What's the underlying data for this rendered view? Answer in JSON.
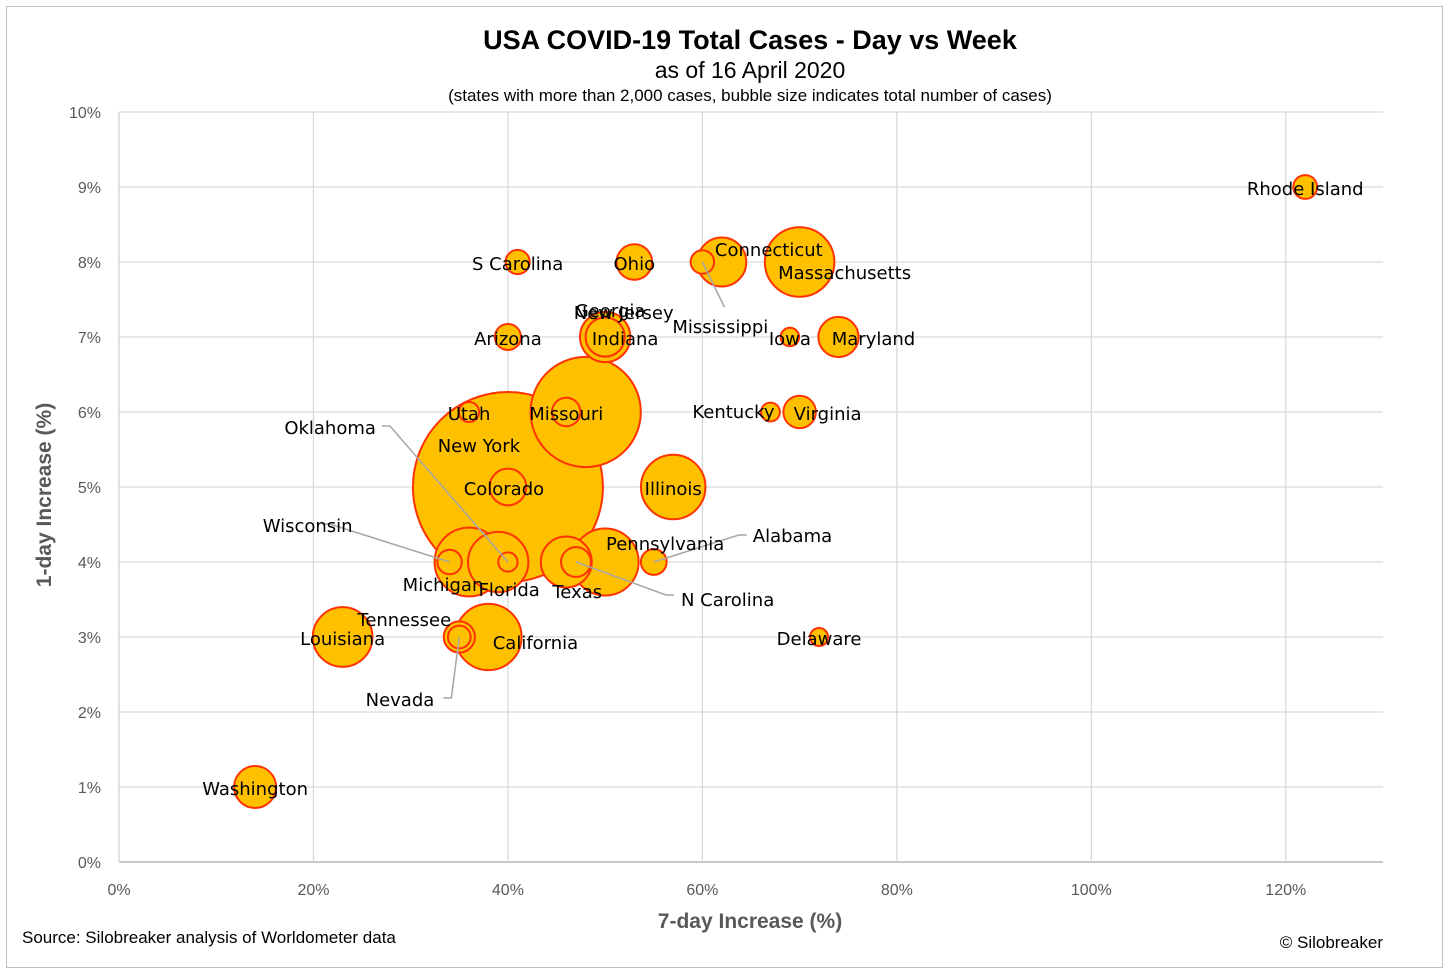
{
  "chart_data": {
    "type": "bubble",
    "title": "USA COVID-19 Total Cases - Day vs Week",
    "subtitle": "as of 16 April 2020",
    "note": "(states with more than 2,000 cases, bubble size indicates total number of cases)",
    "xlabel": "7-day Increase (%)",
    "ylabel": "1-day Increase (%)",
    "xlim": [
      0,
      130
    ],
    "ylim": [
      0,
      10
    ],
    "xticks": [
      0,
      20,
      40,
      60,
      80,
      100,
      120
    ],
    "yticks": [
      0,
      1,
      2,
      3,
      4,
      5,
      6,
      7,
      8,
      9,
      10
    ],
    "grid": true,
    "colors": {
      "fill": "#FFC000",
      "stroke": "#FF3300",
      "grid": "#d9d9d9",
      "leader": "#a6a6a6"
    },
    "points": [
      {
        "name": "New York",
        "x": 40,
        "y": 5,
        "size": 223000
      },
      {
        "name": "New Jersey",
        "x": 48,
        "y": 6,
        "size": 75000
      },
      {
        "name": "Massachusetts",
        "x": 70,
        "y": 8,
        "size": 29900
      },
      {
        "name": "Michigan",
        "x": 36,
        "y": 4,
        "size": 29300
      },
      {
        "name": "Pennsylvania",
        "x": 50,
        "y": 4,
        "size": 27700
      },
      {
        "name": "California",
        "x": 38,
        "y": 3,
        "size": 27100
      },
      {
        "name": "Illinois",
        "x": 57,
        "y": 5,
        "size": 25700
      },
      {
        "name": "Louisiana",
        "x": 23,
        "y": 3,
        "size": 22000
      },
      {
        "name": "Florida",
        "x": 39,
        "y": 4,
        "size": 22500
      },
      {
        "name": "Texas",
        "x": 46,
        "y": 4,
        "size": 16000
      },
      {
        "name": "Georgia",
        "x": 50,
        "y": 7,
        "size": 15600
      },
      {
        "name": "Connecticut",
        "x": 62,
        "y": 8,
        "size": 14800
      },
      {
        "name": "Washington",
        "x": 14,
        "y": 1,
        "size": 10900
      },
      {
        "name": "Maryland",
        "x": 74,
        "y": 7,
        "size": 10000
      },
      {
        "name": "Indiana",
        "x": 50,
        "y": 7,
        "size": 9500
      },
      {
        "name": "Colorado",
        "x": 40,
        "y": 5,
        "size": 8300
      },
      {
        "name": "Ohio",
        "x": 53,
        "y": 8,
        "size": 7800
      },
      {
        "name": "Virginia",
        "x": 70,
        "y": 6,
        "size": 6500
      },
      {
        "name": "Tennessee",
        "x": 35,
        "y": 3,
        "size": 6000
      },
      {
        "name": "N Carolina",
        "x": 47,
        "y": 4,
        "size": 5500
      },
      {
        "name": "Missouri",
        "x": 46,
        "y": 6,
        "size": 5000
      },
      {
        "name": "Arizona",
        "x": 40,
        "y": 7,
        "size": 4200
      },
      {
        "name": "Alabama",
        "x": 55,
        "y": 4,
        "size": 4100
      },
      {
        "name": "Wisconsin",
        "x": 34,
        "y": 4,
        "size": 3700
      },
      {
        "name": "Rhode Island",
        "x": 122,
        "y": 9,
        "size": 3500
      },
      {
        "name": "S Carolina",
        "x": 41,
        "y": 8,
        "size": 3600
      },
      {
        "name": "Mississippi",
        "x": 60,
        "y": 8,
        "size": 3400
      },
      {
        "name": "Nevada",
        "x": 35,
        "y": 3,
        "size": 3200
      },
      {
        "name": "Utah",
        "x": 36,
        "y": 6,
        "size": 2500
      },
      {
        "name": "Oklahoma",
        "x": 40,
        "y": 4,
        "size": 2300
      },
      {
        "name": "Kentucky",
        "x": 67,
        "y": 6,
        "size": 2200
      },
      {
        "name": "Iowa",
        "x": 69,
        "y": 7,
        "size": 2100
      },
      {
        "name": "Delaware",
        "x": 72,
        "y": 3,
        "size": 2000
      }
    ]
  },
  "footer": {
    "source": "Source: Silobreaker analysis of Worldometer data",
    "copyright": "© Silobreaker"
  }
}
